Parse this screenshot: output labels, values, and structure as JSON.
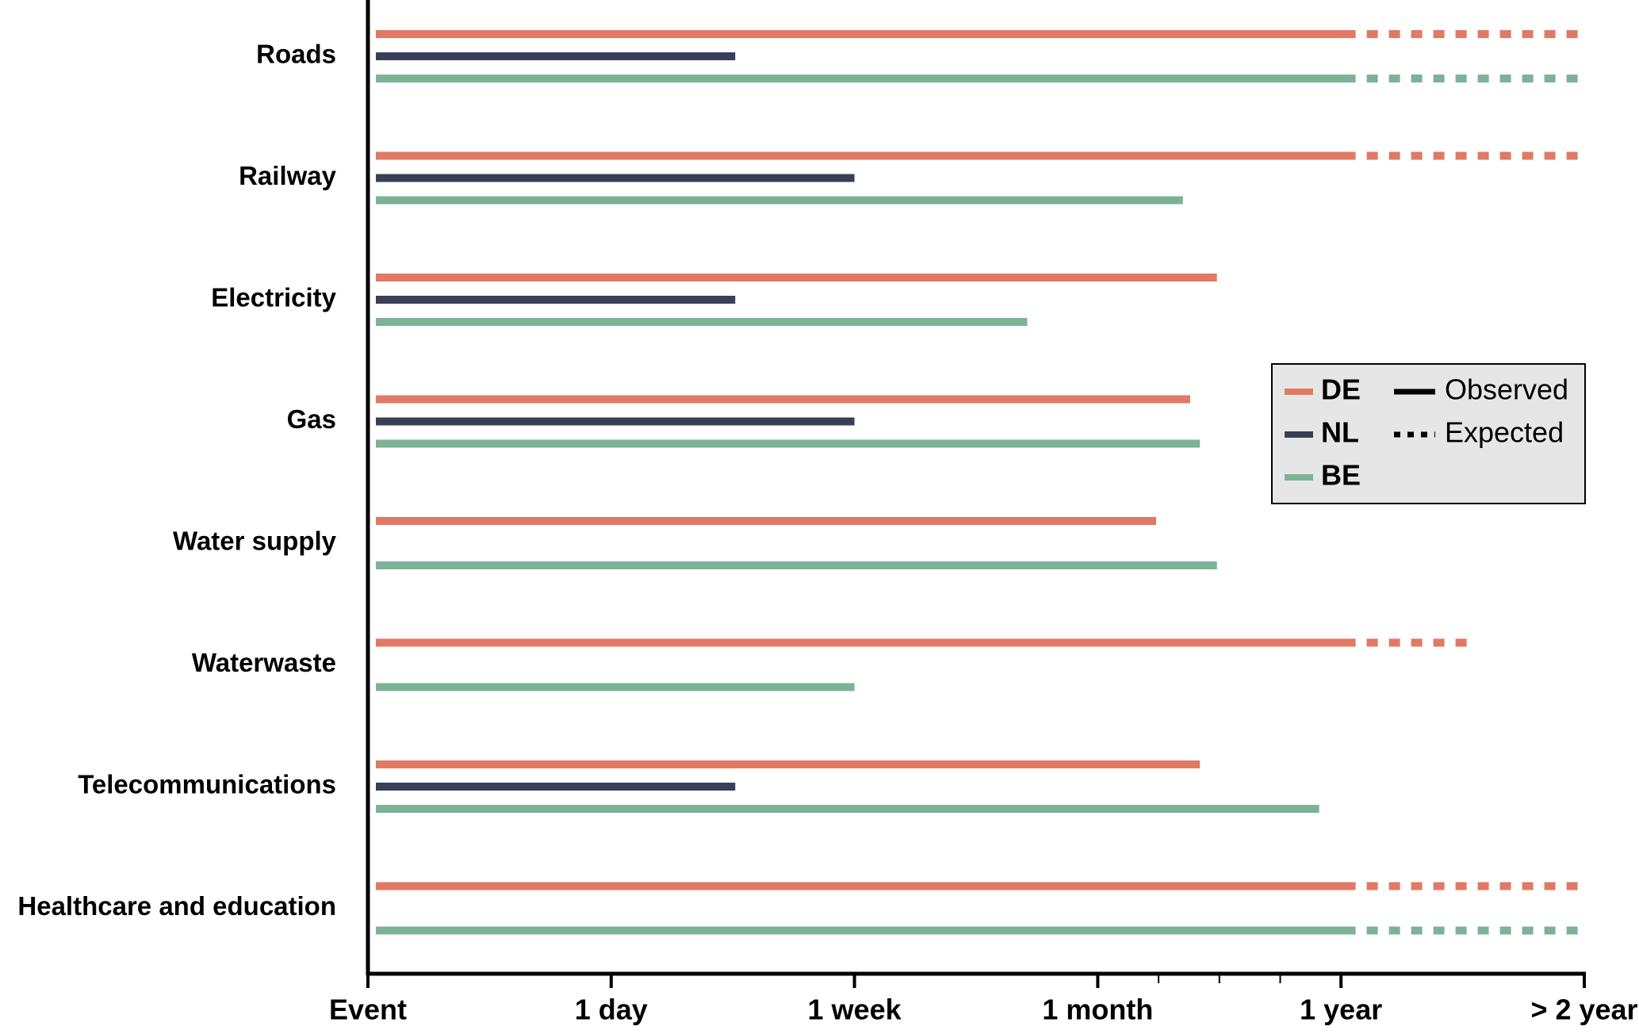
{
  "chart_data": {
    "type": "bar",
    "orientation": "horizontal",
    "categories": [
      "Roads",
      "Railway",
      "Electricity",
      "Gas",
      "Water supply",
      "Waterwaste",
      "Telecommunications",
      "Healthcare and education"
    ],
    "series": [
      {
        "name": "DE",
        "color": "#e07a64",
        "values": [
          4.06,
          4.06,
          3.49,
          3.38,
          3.24,
          4.06,
          3.42,
          4.06
        ],
        "expected": [
          5,
          5,
          null,
          null,
          null,
          4.52,
          null,
          5
        ]
      },
      {
        "name": "NL",
        "color": "#3a3f58",
        "values": [
          1.51,
          2.0,
          1.51,
          2.0,
          null,
          null,
          1.51,
          null
        ],
        "expected": [
          null,
          null,
          null,
          null,
          null,
          null,
          null,
          null
        ]
      },
      {
        "name": "BE",
        "color": "#7db297",
        "values": [
          4.06,
          3.35,
          2.71,
          3.42,
          3.49,
          2.0,
          3.91,
          4.06
        ],
        "expected": [
          5,
          null,
          null,
          null,
          null,
          null,
          null,
          5
        ]
      }
    ],
    "line_styles": [
      {
        "name": "Observed",
        "dashed": false
      },
      {
        "name": "Expected",
        "dashed": true
      }
    ],
    "xlim": [
      0,
      5
    ],
    "xticks": [
      {
        "value": 0,
        "label": "Event"
      },
      {
        "value": 1,
        "label": "1 day"
      },
      {
        "value": 2,
        "label": "1 week"
      },
      {
        "value": 3,
        "label": "1 month"
      },
      {
        "value": 4,
        "label": "1 year"
      },
      {
        "value": 5,
        "label": "> 2 year"
      }
    ],
    "minor_xticks": [
      3.25,
      3.5,
      3.75
    ],
    "legend": "right"
  }
}
